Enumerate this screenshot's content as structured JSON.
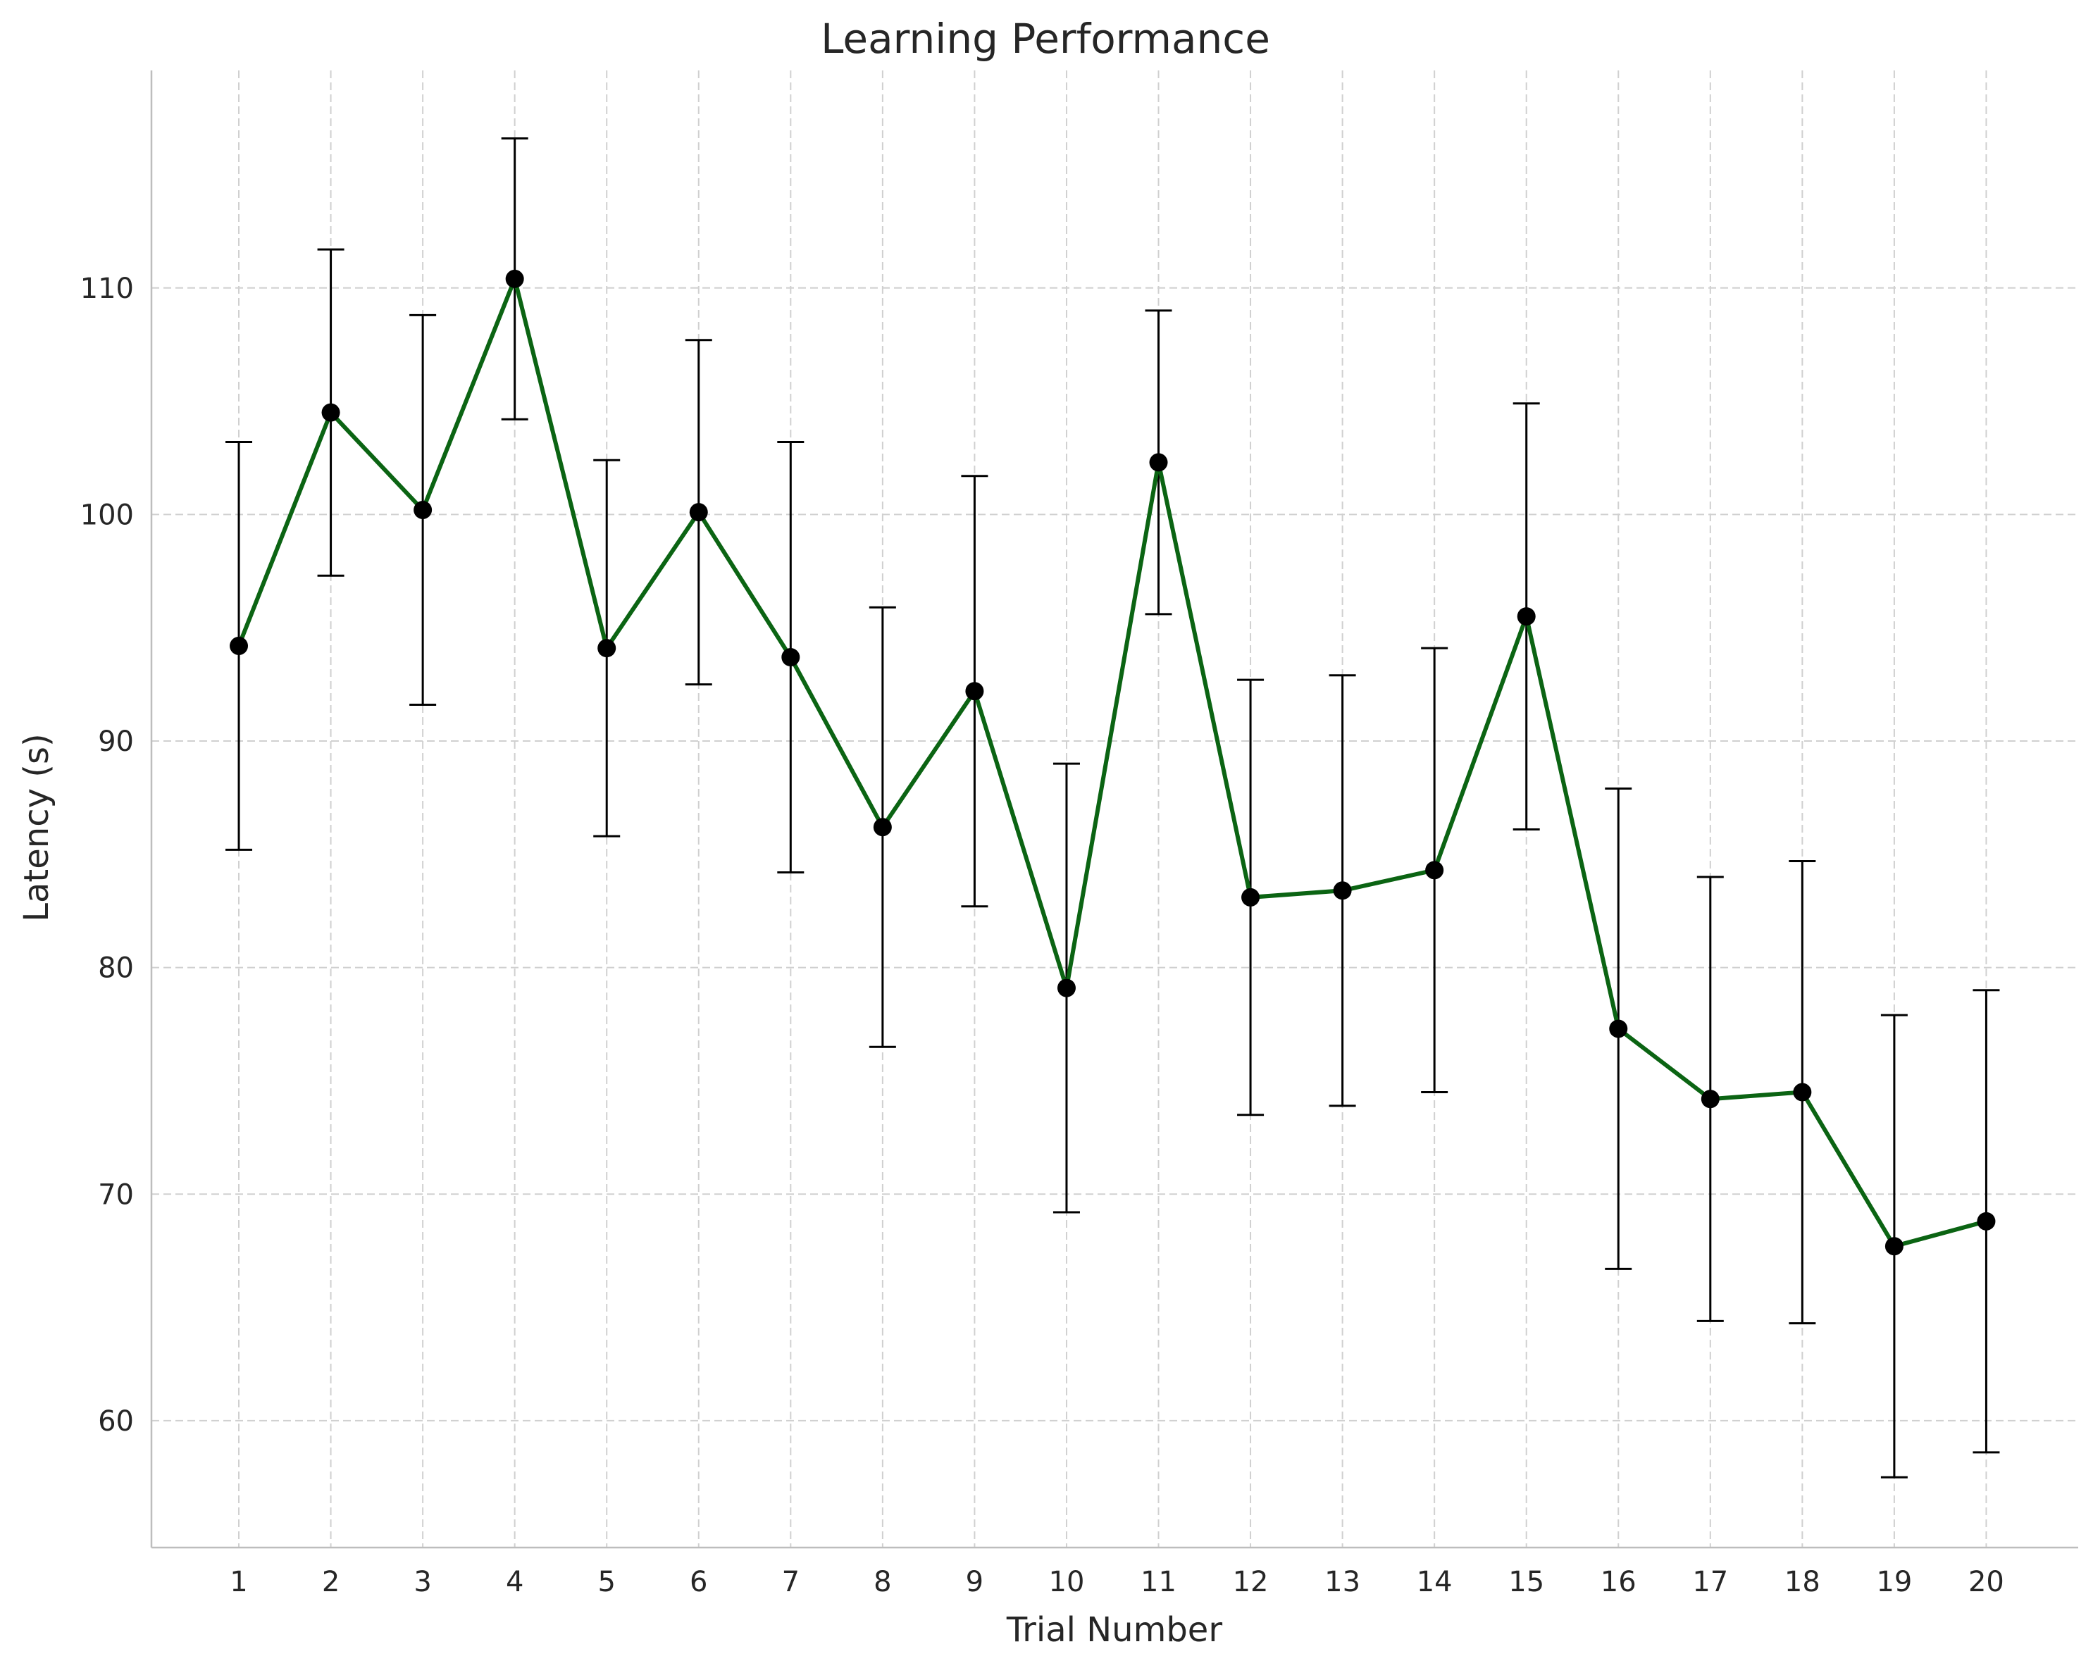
{
  "chart_data": {
    "type": "line",
    "title": "Learning Performance",
    "xlabel": "Trial Number",
    "ylabel": "Latency (s)",
    "x": [
      1,
      2,
      3,
      4,
      5,
      6,
      7,
      8,
      9,
      10,
      11,
      12,
      13,
      14,
      15,
      16,
      17,
      18,
      19,
      20
    ],
    "xticks": [
      "1",
      "2",
      "3",
      "4",
      "5",
      "6",
      "7",
      "8",
      "9",
      "10",
      "11",
      "12",
      "13",
      "14",
      "15",
      "16",
      "17",
      "18",
      "19",
      "20"
    ],
    "yticks": [
      60,
      70,
      80,
      90,
      100,
      110
    ],
    "xlim": [
      0.05,
      21.0
    ],
    "ylim": [
      54.4,
      119.6
    ],
    "grid": true,
    "series": [
      {
        "line_color": "#0b6413",
        "marker_color": "#000000",
        "values": [
          94.2,
          104.5,
          100.2,
          110.4,
          94.1,
          100.1,
          93.7,
          86.2,
          92.2,
          79.1,
          102.3,
          83.1,
          83.4,
          84.3,
          95.5,
          77.3,
          74.2,
          74.5,
          67.7,
          68.8
        ],
        "error": [
          9.0,
          7.2,
          8.6,
          6.2,
          8.3,
          7.6,
          9.5,
          9.7,
          9.5,
          9.9,
          6.7,
          9.6,
          9.5,
          9.8,
          9.4,
          10.6,
          9.8,
          10.2,
          10.2,
          10.2
        ]
      }
    ]
  }
}
